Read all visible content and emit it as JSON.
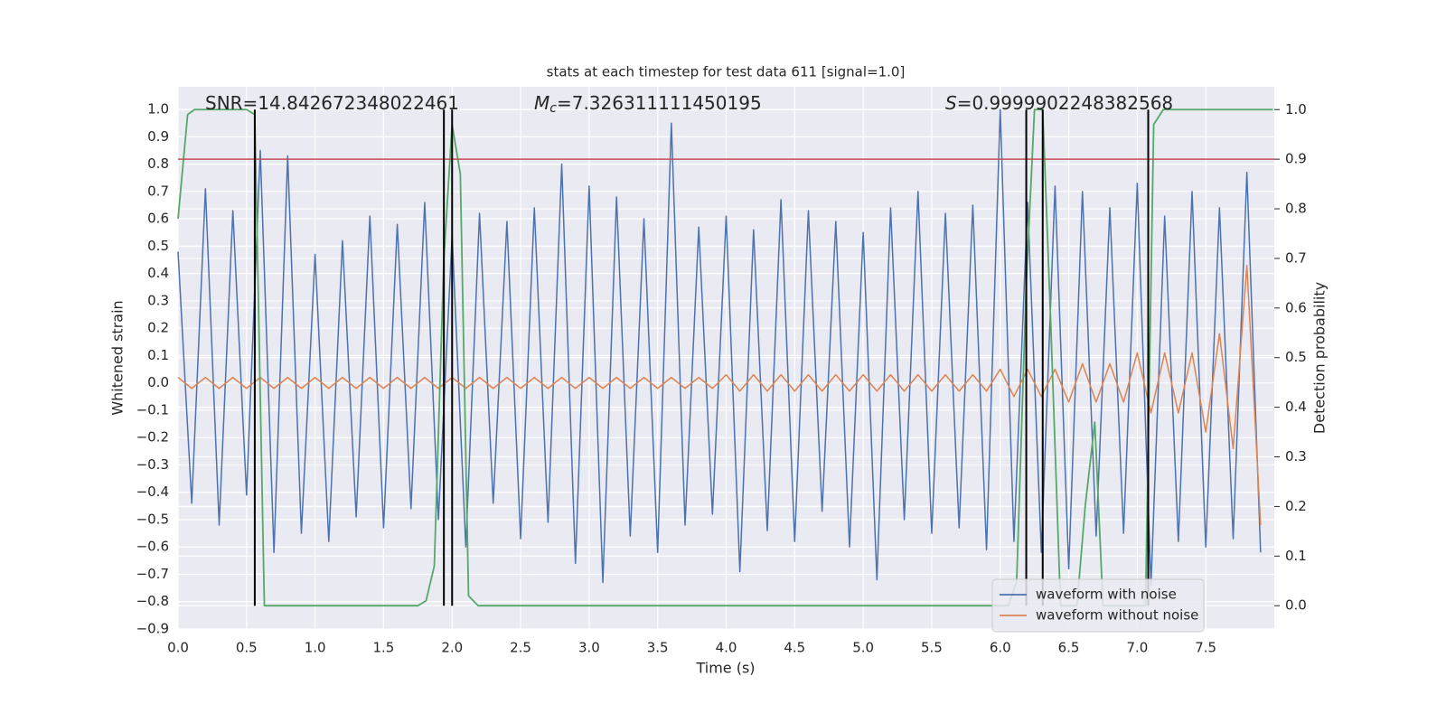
{
  "chart_data": {
    "type": "line",
    "title": "stats at each timestep for test data 611 [signal=1.0]",
    "xlabel": "Time (s)",
    "ylabel": "Whitened strain",
    "y2label": "Detection probability",
    "annotations": [
      {
        "text": "SNR=14.842672348022461"
      },
      {
        "symbol": "M",
        "subscript": "c",
        "text": "=7.326311111450195"
      },
      {
        "symbol": "S",
        "text": "=0.9999902248382568"
      }
    ],
    "x": [
      0.0,
      0.1,
      0.2,
      0.3,
      0.4,
      0.5,
      0.6,
      0.7,
      0.8,
      0.9,
      1.0,
      1.1,
      1.2,
      1.3,
      1.4,
      1.5,
      1.6,
      1.7,
      1.8,
      1.9,
      2.0,
      2.1,
      2.2,
      2.3,
      2.4,
      2.5,
      2.6,
      2.7,
      2.8,
      2.9,
      3.0,
      3.1,
      3.2,
      3.3,
      3.4,
      3.5,
      3.6,
      3.7,
      3.8,
      3.9,
      4.0,
      4.1,
      4.2,
      4.3,
      4.4,
      4.5,
      4.6,
      4.7,
      4.8,
      4.9,
      5.0,
      5.1,
      5.2,
      5.3,
      5.4,
      5.5,
      5.6,
      5.7,
      5.8,
      5.9,
      6.0,
      6.1,
      6.2,
      6.3,
      6.4,
      6.5,
      6.6,
      6.7,
      6.8,
      6.9,
      7.0,
      7.1,
      7.2,
      7.3,
      7.4,
      7.5,
      7.6,
      7.7,
      7.8,
      7.9
    ],
    "series": [
      {
        "name": "waveform with noise",
        "color": "#4c72b0",
        "values": [
          0.48,
          -0.44,
          0.71,
          -0.52,
          0.63,
          -0.41,
          0.85,
          -0.62,
          0.83,
          -0.55,
          0.47,
          -0.58,
          0.52,
          -0.49,
          0.61,
          -0.53,
          0.58,
          -0.46,
          0.66,
          -0.5,
          0.54,
          -0.6,
          0.62,
          -0.44,
          0.59,
          -0.57,
          0.64,
          -0.51,
          0.8,
          -0.66,
          0.72,
          -0.73,
          0.68,
          -0.56,
          0.6,
          -0.62,
          0.95,
          -0.52,
          0.57,
          -0.48,
          0.61,
          -0.69,
          0.56,
          -0.54,
          0.67,
          -0.58,
          0.63,
          -0.47,
          0.59,
          -0.6,
          0.55,
          -0.72,
          0.64,
          -0.5,
          0.7,
          -0.55,
          0.62,
          -0.53,
          0.65,
          -0.61,
          1.0,
          -0.58,
          0.66,
          -0.62,
          0.72,
          -0.68,
          0.7,
          -0.56,
          0.64,
          -0.55,
          0.73,
          -0.74,
          0.61,
          -0.58,
          0.7,
          -0.6,
          0.64,
          -0.57,
          0.77,
          -0.62
        ]
      },
      {
        "name": "waveform without noise",
        "color": "#dd8452",
        "values": [
          0.02,
          -0.02,
          0.02,
          -0.02,
          0.02,
          -0.02,
          0.02,
          -0.02,
          0.02,
          -0.02,
          0.02,
          -0.02,
          0.02,
          -0.02,
          0.02,
          -0.02,
          0.02,
          -0.02,
          0.02,
          -0.02,
          0.02,
          -0.02,
          0.02,
          -0.02,
          0.02,
          -0.02,
          0.02,
          -0.02,
          0.02,
          -0.02,
          0.02,
          -0.02,
          0.02,
          -0.02,
          0.02,
          -0.02,
          0.02,
          -0.02,
          0.02,
          -0.02,
          0.03,
          -0.03,
          0.03,
          -0.03,
          0.03,
          -0.03,
          0.03,
          -0.03,
          0.03,
          -0.03,
          0.03,
          -0.03,
          0.03,
          -0.03,
          0.03,
          -0.03,
          0.03,
          -0.03,
          0.03,
          -0.03,
          0.05,
          -0.05,
          0.05,
          -0.05,
          0.05,
          -0.07,
          0.07,
          -0.07,
          0.07,
          -0.07,
          0.11,
          -0.11,
          0.11,
          -0.11,
          0.11,
          -0.18,
          0.18,
          -0.24,
          0.43,
          -0.52
        ]
      },
      {
        "color": "#55a868",
        "axis": "y2",
        "x": [
          0,
          0.07,
          0.12,
          0.5,
          0.56,
          0.63,
          1.75,
          1.81,
          1.87,
          1.94,
          2.0,
          2.06,
          2.12,
          2.19,
          6.06,
          6.12,
          6.19,
          6.25,
          6.31,
          6.37,
          6.44,
          6.56,
          6.62,
          6.69,
          6.75,
          7.06,
          7.12,
          7.19,
          7.99
        ],
        "values": [
          0.78,
          0.99,
          1.0,
          1.0,
          0.99,
          0.0,
          0.0,
          0.01,
          0.08,
          0.7,
          0.97,
          0.87,
          0.02,
          0.0,
          0.0,
          0.05,
          0.65,
          1.0,
          1.0,
          0.56,
          0.0,
          0.0,
          0.2,
          0.37,
          0.0,
          0.0,
          0.97,
          1.0,
          1.0
        ]
      }
    ],
    "hlines": [
      {
        "value": 0.9,
        "axis": "y2",
        "color": "#c44e52"
      }
    ],
    "vlines": {
      "x": [
        0.56,
        1.94,
        2.0,
        6.19,
        6.31,
        7.08
      ],
      "ymin": 0,
      "ymax": 1,
      "axis": "y2",
      "color": "#000000"
    },
    "xlim": [
      0,
      8.0
    ],
    "ylim": [
      -0.9,
      1.083
    ],
    "y2lim": [
      -0.047,
      1.046
    ],
    "xticks": [
      {
        "value": 0,
        "label": "0.0"
      },
      {
        "value": 0.5,
        "label": "0.5"
      },
      {
        "value": 1,
        "label": "1.0"
      },
      {
        "value": 1.5,
        "label": "1.5"
      },
      {
        "value": 2,
        "label": "2.0"
      },
      {
        "value": 2.5,
        "label": "2.5"
      },
      {
        "value": 3,
        "label": "3.0"
      },
      {
        "value": 3.5,
        "label": "3.5"
      },
      {
        "value": 4,
        "label": "4.0"
      },
      {
        "value": 4.5,
        "label": "4.5"
      },
      {
        "value": 5,
        "label": "5.0"
      },
      {
        "value": 5.5,
        "label": "5.5"
      },
      {
        "value": 6,
        "label": "6.0"
      },
      {
        "value": 6.5,
        "label": "6.5"
      },
      {
        "value": 7,
        "label": "7.0"
      },
      {
        "value": 7.5,
        "label": "7.5"
      }
    ],
    "yticks": [
      {
        "value": -0.9,
        "label": "−0.9"
      },
      {
        "value": -0.8,
        "label": "−0.8"
      },
      {
        "value": -0.7,
        "label": "−0.7"
      },
      {
        "value": -0.6,
        "label": "−0.6"
      },
      {
        "value": -0.5,
        "label": "−0.5"
      },
      {
        "value": -0.4,
        "label": "−0.4"
      },
      {
        "value": -0.3,
        "label": "−0.3"
      },
      {
        "value": -0.2,
        "label": "−0.2"
      },
      {
        "value": -0.1,
        "label": "−0.1"
      },
      {
        "value": 0,
        "label": "0.0"
      },
      {
        "value": 0.1,
        "label": "0.1"
      },
      {
        "value": 0.2,
        "label": "0.2"
      },
      {
        "value": 0.3,
        "label": "0.3"
      },
      {
        "value": 0.4,
        "label": "0.4"
      },
      {
        "value": 0.5,
        "label": "0.5"
      },
      {
        "value": 0.6,
        "label": "0.6"
      },
      {
        "value": 0.7,
        "label": "0.7"
      },
      {
        "value": 0.8,
        "label": "0.8"
      },
      {
        "value": 0.9,
        "label": "0.9"
      },
      {
        "value": 1,
        "label": "1.0"
      }
    ],
    "y2ticks": [
      {
        "value": 0,
        "label": "0.0"
      },
      {
        "value": 0.1,
        "label": "0.1"
      },
      {
        "value": 0.2,
        "label": "0.2"
      },
      {
        "value": 0.3,
        "label": "0.3"
      },
      {
        "value": 0.4,
        "label": "0.4"
      },
      {
        "value": 0.5,
        "label": "0.5"
      },
      {
        "value": 0.6,
        "label": "0.6"
      },
      {
        "value": 0.7,
        "label": "0.7"
      },
      {
        "value": 0.8,
        "label": "0.8"
      },
      {
        "value": 0.9,
        "label": "0.9"
      },
      {
        "value": 1,
        "label": "1.0"
      }
    ],
    "grid": true,
    "background": "#eaeaf2",
    "legend": "lower right"
  }
}
